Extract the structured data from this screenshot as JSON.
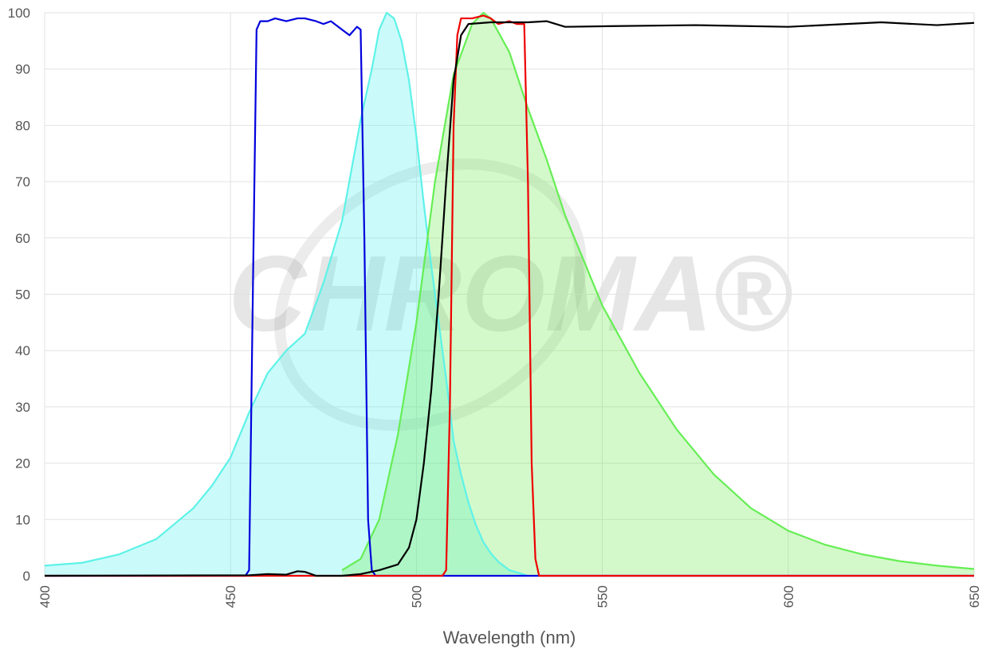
{
  "chart_data": {
    "type": "line",
    "x_label": "Wavelength (nm)",
    "watermark": "CHROMA®",
    "xlim": [
      400,
      650
    ],
    "xticks": [
      400,
      450,
      500,
      550,
      600,
      650
    ],
    "ylim": [
      0,
      100
    ],
    "yticks": [
      0,
      10,
      20,
      30,
      40,
      50,
      60,
      70,
      80,
      90,
      100
    ],
    "grid": true,
    "series": [
      {
        "color": "#5ef2e8",
        "fill": "rgba(60,240,235,0.27)",
        "x": [
          400,
          410,
          420,
          430,
          440,
          445,
          450,
          455,
          460,
          465,
          470,
          475,
          480,
          485,
          488,
          490,
          492,
          494,
          496,
          498,
          500,
          502,
          504,
          506,
          508,
          510,
          512,
          514,
          516,
          518,
          520,
          522,
          525,
          528,
          530
        ],
        "values": [
          1.8,
          2.3,
          3.8,
          6.5,
          12,
          16,
          21,
          29,
          36,
          40,
          43,
          52,
          63,
          81,
          90,
          97,
          100,
          99,
          95,
          88,
          78,
          66,
          55,
          45,
          35,
          24,
          18,
          13,
          9,
          6,
          4,
          2.5,
          1,
          0.4,
          0
        ]
      },
      {
        "color": "#66ee55",
        "fill": "rgba(110,235,80,0.3)",
        "x": [
          480,
          485,
          490,
          495,
          500,
          505,
          510,
          515,
          518,
          520,
          525,
          530,
          535,
          540,
          545,
          550,
          555,
          560,
          565,
          570,
          575,
          580,
          585,
          590,
          595,
          600,
          610,
          620,
          630,
          640,
          650
        ],
        "values": [
          1,
          3,
          10,
          25,
          45,
          70,
          89,
          98,
          100,
          99,
          93,
          83,
          74,
          64,
          56,
          48,
          42,
          36,
          31,
          26,
          22,
          18,
          15,
          12,
          10,
          8,
          5.5,
          3.8,
          2.6,
          1.8,
          1.2
        ]
      },
      {
        "color": "#0000dd",
        "x": [
          400,
          454,
          455,
          456,
          457,
          458,
          460,
          462,
          465,
          468,
          470,
          473,
          475,
          477,
          480,
          482,
          484,
          485,
          486,
          487,
          488,
          489,
          650
        ],
        "values": [
          0,
          0,
          1,
          50,
          97,
          98.5,
          98.5,
          99,
          98.5,
          99,
          99,
          98.5,
          98,
          98.5,
          97,
          96,
          97.5,
          97,
          60,
          10,
          1,
          0,
          0
        ]
      },
      {
        "color": "#ee0000",
        "x": [
          400,
          507,
          508,
          509,
          510,
          511,
          512,
          515,
          518,
          520,
          522,
          525,
          527,
          529,
          530,
          531,
          532,
          533,
          650
        ],
        "values": [
          0,
          0,
          1,
          30,
          80,
          96,
          99,
          99,
          99.5,
          99,
          98,
          98.5,
          98,
          98,
          70,
          20,
          3,
          0,
          0
        ]
      },
      {
        "color": "#000000",
        "x": [
          400,
          455,
          460,
          465,
          468,
          470,
          473,
          480,
          485,
          490,
          495,
          498,
          500,
          502,
          504,
          506,
          508,
          510,
          512,
          514,
          520,
          530,
          535,
          540,
          550,
          575,
          600,
          625,
          640,
          650
        ],
        "values": [
          0,
          0.1,
          0.3,
          0.2,
          0.8,
          0.7,
          0,
          0,
          0.3,
          1,
          2,
          5,
          10,
          20,
          33,
          50,
          70,
          88,
          96,
          98,
          98.3,
          98.3,
          98.5,
          97.5,
          97.6,
          97.8,
          97.5,
          98.3,
          97.8,
          98.2
        ]
      }
    ]
  }
}
